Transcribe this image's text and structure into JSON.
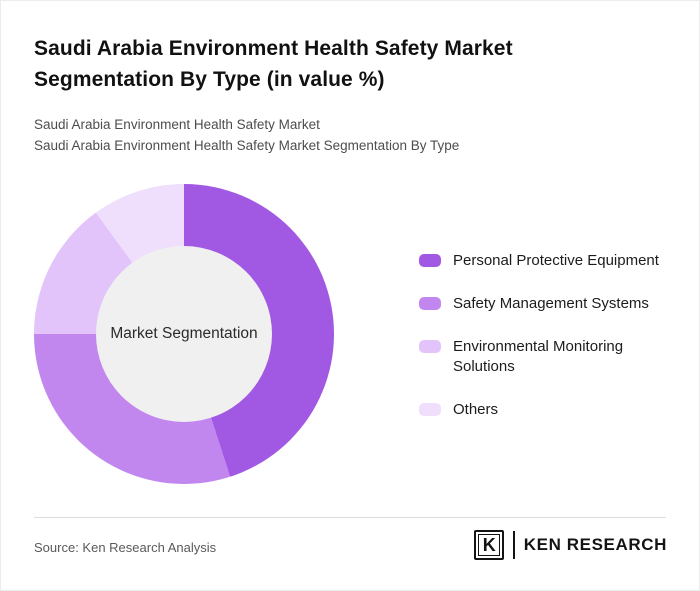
{
  "header": {
    "title": "Saudi Arabia Environment Health Safety Market Segmentation By Type (in value %)",
    "subtitle_line1": "Saudi Arabia Environment Health Safety Market",
    "subtitle_line2": "Saudi Arabia Environment Health Safety Market Segmentation By Type"
  },
  "chart_data": {
    "type": "pie",
    "variant": "donut",
    "title": "Saudi Arabia Environment Health Safety Market Segmentation By Type (in value %)",
    "unit": "value %",
    "center_label": "Market Segmentation",
    "legend_position": "right",
    "start_angle_deg": 0,
    "segments": [
      {
        "label": "Personal Protective Equipment",
        "value": 45,
        "color": "#a158e2"
      },
      {
        "label": "Safety Management Systems",
        "value": 30,
        "color": "#c287ef"
      },
      {
        "label": "Environmental Monitoring Solutions",
        "value": 15,
        "color": "#e2c3fa"
      },
      {
        "label": "Others",
        "value": 10,
        "color": "#efdffc"
      }
    ],
    "center_fill": "#f0f0f0"
  },
  "footer": {
    "source": "Source: Ken Research Analysis",
    "logo": {
      "letter": "K",
      "text": "KEN RESEARCH"
    }
  }
}
